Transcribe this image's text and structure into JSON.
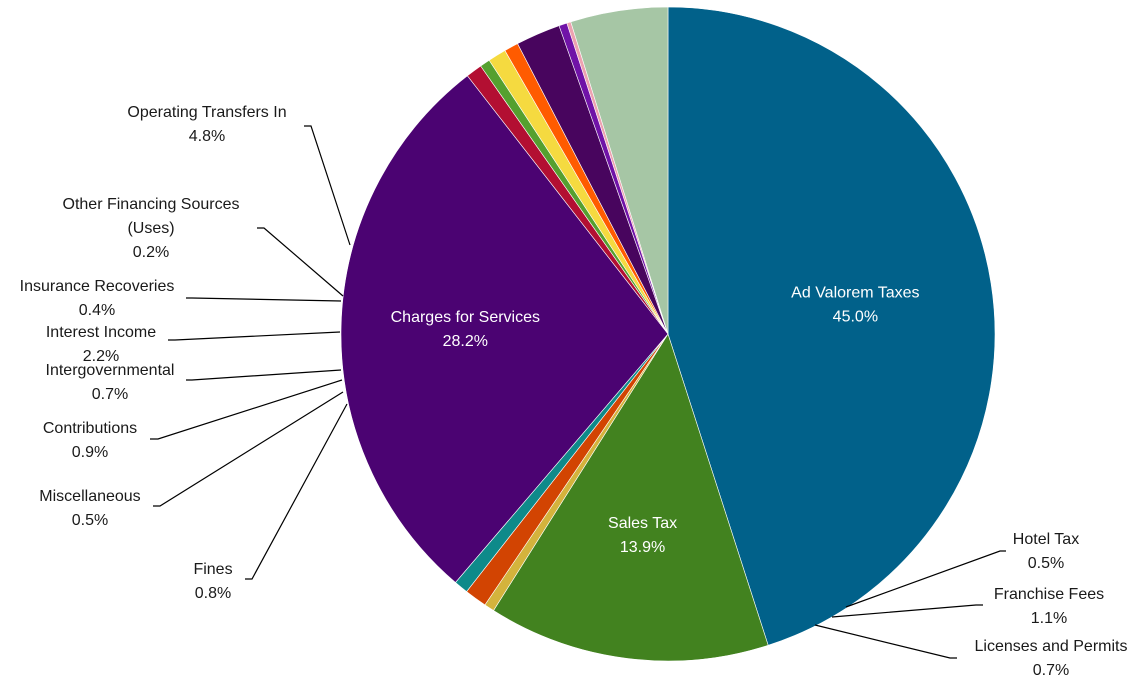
{
  "chart_data": {
    "type": "pie",
    "start_angle_deg": 0,
    "direction": "clockwise",
    "slices": [
      {
        "name": "Ad Valorem Taxes",
        "value": 45.0,
        "label": "45.0%",
        "color": "#01618A",
        "label_lines": [
          "Ad Valorem Taxes"
        ],
        "placement": "inside"
      },
      {
        "name": "Sales Tax",
        "value": 13.9,
        "label": "13.9%",
        "color": "#42821F",
        "label_lines": [
          "Sales Tax"
        ],
        "placement": "inside"
      },
      {
        "name": "Hotel Tax",
        "value": 0.5,
        "label": "0.5%",
        "color": "#D4B33C",
        "label_lines": [
          "Hotel Tax"
        ],
        "placement": "outside"
      },
      {
        "name": "Franchise Fees",
        "value": 1.1,
        "label": "1.1%",
        "color": "#D24402",
        "label_lines": [
          "Franchise Fees"
        ],
        "placement": "outside"
      },
      {
        "name": "Licenses and Permits",
        "value": 0.7,
        "label": "0.7%",
        "color": "#0E8A8A",
        "label_lines": [
          "Licenses and Permits"
        ],
        "placement": "outside"
      },
      {
        "name": "Charges for Services",
        "value": 28.2,
        "label": "28.2%",
        "color": "#4B0372",
        "label_lines": [
          "Charges for Services"
        ],
        "placement": "inside"
      },
      {
        "name": "Fines",
        "value": 0.8,
        "label": "0.8%",
        "color": "#B30F32",
        "label_lines": [
          "Fines"
        ],
        "placement": "outside"
      },
      {
        "name": "Miscellaneous",
        "value": 0.5,
        "label": "0.5%",
        "color": "#55A02F",
        "label_lines": [
          "Miscellaneous"
        ],
        "placement": "outside"
      },
      {
        "name": "Contributions",
        "value": 0.9,
        "label": "0.9%",
        "color": "#F5DA40",
        "label_lines": [
          "Contributions"
        ],
        "placement": "outside"
      },
      {
        "name": "Intergovernmental",
        "value": 0.7,
        "label": "0.7%",
        "color": "#FF5B00",
        "label_lines": [
          "Intergovernmental"
        ],
        "placement": "outside"
      },
      {
        "name": "Interest Income",
        "value": 2.2,
        "label": "2.2%",
        "color": "#48055E",
        "label_lines": [
          "Interest Income"
        ],
        "placement": "outside"
      },
      {
        "name": "Insurance Recoveries",
        "value": 0.4,
        "label": "0.4%",
        "color": "#7013A7",
        "label_lines": [
          "Insurance Recoveries"
        ],
        "placement": "outside"
      },
      {
        "name": "Other Financing Sources (Uses)",
        "value": 0.2,
        "label": "0.2%",
        "color": "#EDA2B0",
        "label_lines": [
          "Other Financing Sources",
          "(Uses)"
        ],
        "placement": "outside"
      },
      {
        "name": "Operating Transfers In",
        "value": 4.8,
        "label": "4.8%",
        "color": "#A6C6A5",
        "label_lines": [
          "Operating Transfers In"
        ],
        "placement": "outside"
      }
    ]
  }
}
